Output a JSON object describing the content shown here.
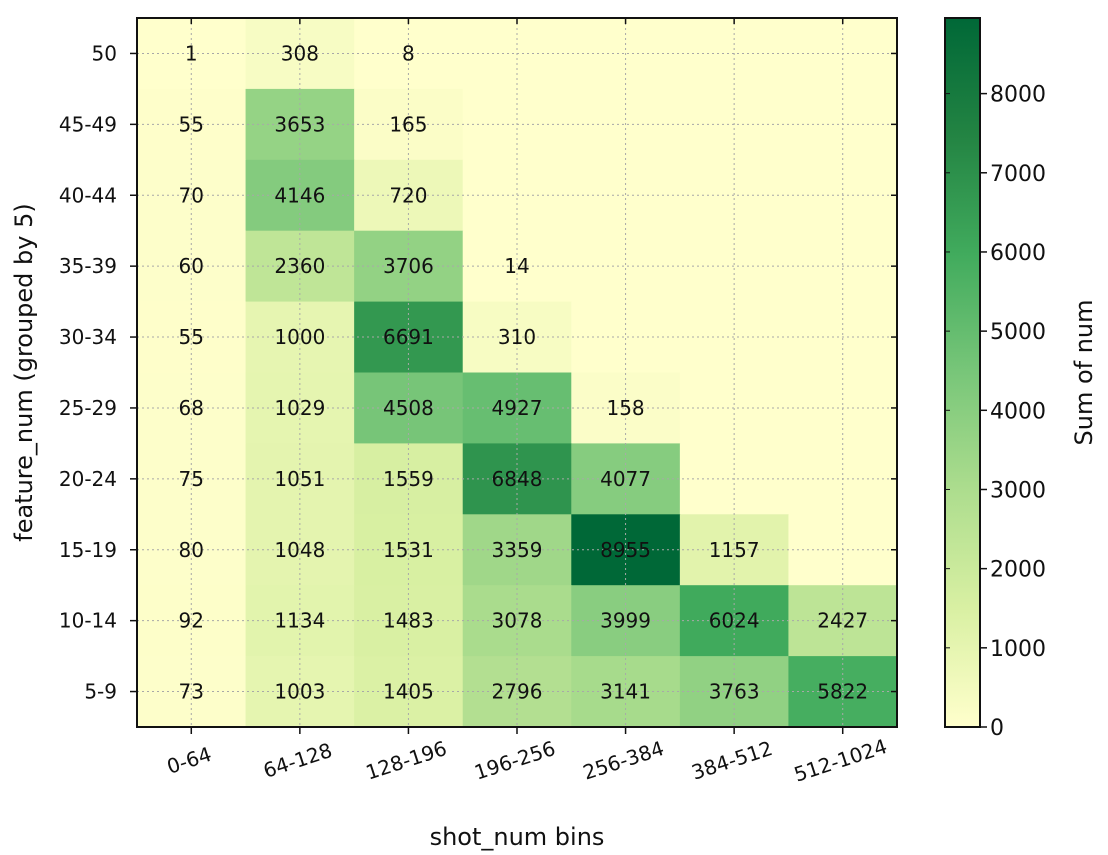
{
  "chart_data": {
    "type": "heatmap",
    "title": "",
    "xlabel": "shot_num bins",
    "ylabel": "feature_num (grouped by 5)",
    "x_categories": [
      "0-64",
      "64-128",
      "128-196",
      "196-256",
      "256-384",
      "384-512",
      "512-1024"
    ],
    "y_categories": [
      "50",
      "45-49",
      "40-44",
      "35-39",
      "30-34",
      "25-29",
      "20-24",
      "15-19",
      "10-14",
      "5-9"
    ],
    "values": [
      [
        1,
        308,
        8,
        0,
        0,
        0,
        0
      ],
      [
        55,
        3653,
        165,
        0,
        0,
        0,
        0
      ],
      [
        70,
        4146,
        720,
        0,
        0,
        0,
        0
      ],
      [
        60,
        2360,
        3706,
        14,
        0,
        0,
        0
      ],
      [
        55,
        1000,
        6691,
        310,
        0,
        0,
        0
      ],
      [
        68,
        1029,
        4508,
        4927,
        158,
        0,
        0
      ],
      [
        75,
        1051,
        1559,
        6848,
        4077,
        0,
        0
      ],
      [
        80,
        1048,
        1531,
        3359,
        8955,
        1157,
        0
      ],
      [
        92,
        1134,
        1483,
        3078,
        3999,
        6024,
        2427
      ],
      [
        73,
        1003,
        1405,
        2796,
        3141,
        3763,
        5822
      ]
    ],
    "labels": [
      [
        "1",
        "308",
        "8",
        "",
        "",
        "",
        ""
      ],
      [
        "55",
        "3653",
        "165",
        "",
        "",
        "",
        ""
      ],
      [
        "70",
        "4146",
        "720",
        "",
        "",
        "",
        ""
      ],
      [
        "60",
        "2360",
        "3706",
        "14",
        "",
        "",
        ""
      ],
      [
        "55",
        "1000",
        "6691",
        "310",
        "",
        "",
        ""
      ],
      [
        "68",
        "1029",
        "4508",
        "4927",
        "158",
        "",
        ""
      ],
      [
        "75",
        "1051",
        "1559",
        "6848",
        "4077",
        "",
        ""
      ],
      [
        "80",
        "1048",
        "1531",
        "3359",
        "8955",
        "1157",
        ""
      ],
      [
        "92",
        "1134",
        "1483",
        "3078",
        "3999",
        "6024",
        "2427"
      ],
      [
        "73",
        "1003",
        "1405",
        "2796",
        "3141",
        "3763",
        "5822"
      ]
    ],
    "colorbar": {
      "label": "Sum of num",
      "range": [
        0,
        8955
      ],
      "ticks": [
        "0",
        "1000",
        "2000",
        "3000",
        "4000",
        "5000",
        "6000",
        "7000",
        "8000"
      ],
      "colormap": "YlGn",
      "colors": [
        "#ffffcc",
        "#d9f0a3",
        "#addd8e",
        "#78c679",
        "#41ab5d",
        "#238443",
        "#006837"
      ]
    },
    "grid": true,
    "x_tick_rotation": "rotated"
  }
}
